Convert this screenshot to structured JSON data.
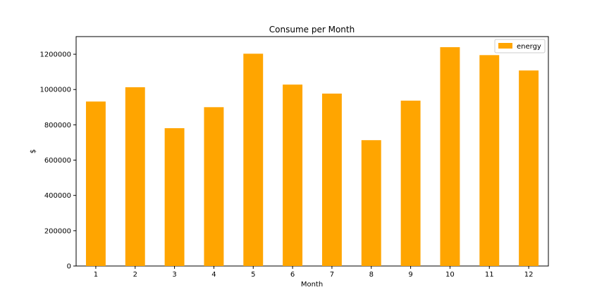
{
  "chart_data": {
    "type": "bar",
    "title": "Consume per Month",
    "xlabel": "Month",
    "ylabel": "$",
    "categories": [
      "1",
      "2",
      "3",
      "4",
      "5",
      "6",
      "7",
      "8",
      "9",
      "10",
      "11",
      "12"
    ],
    "series": [
      {
        "name": "energy",
        "color": "#ffa500",
        "values": [
          932000,
          1013000,
          781000,
          900000,
          1203000,
          1028000,
          977000,
          713000,
          937000,
          1240000,
          1195000,
          1108000
        ]
      }
    ],
    "ylim": [
      0,
      1300000
    ],
    "yticks": [
      0,
      200000,
      400000,
      600000,
      800000,
      1000000,
      1200000
    ],
    "ytick_labels": [
      "0",
      "200000",
      "400000",
      "600000",
      "800000",
      "1000000",
      "1200000"
    ],
    "grid": false,
    "legend_position": "top-right"
  }
}
